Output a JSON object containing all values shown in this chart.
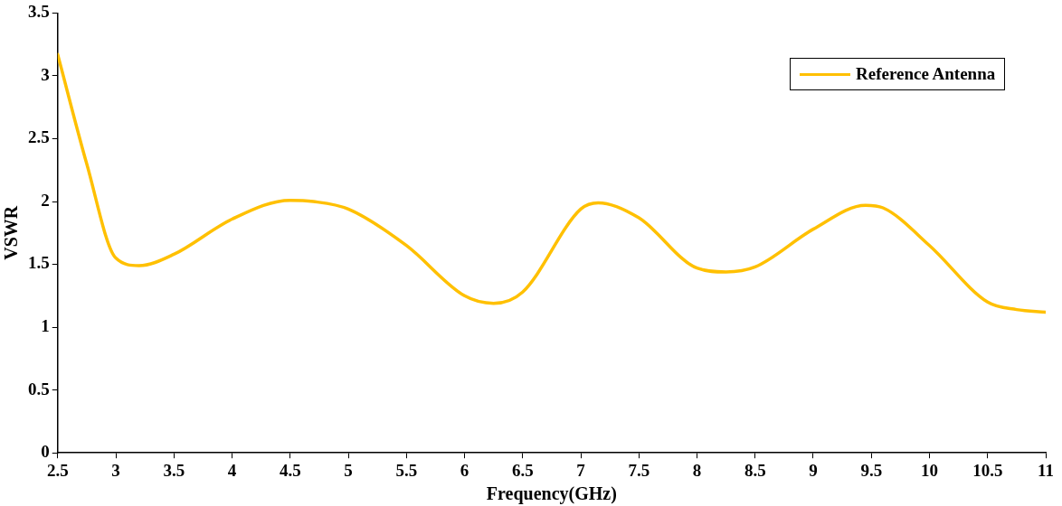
{
  "chart_data": {
    "type": "line",
    "xlabel": "Frequency(GHz)",
    "ylabel": "VSWR",
    "series": [
      {
        "name": "Reference Antenna",
        "color": "#ffc000",
        "x": [
          2.5,
          2.75,
          3.0,
          3.2,
          3.5,
          4.0,
          4.5,
          4.7,
          5.0,
          5.5,
          6.0,
          6.25,
          6.5,
          7.0,
          7.15,
          7.5,
          8.0,
          8.25,
          8.5,
          9.0,
          9.45,
          9.6,
          10.0,
          10.5,
          10.75,
          11.0
        ],
        "values": [
          3.17,
          2.3,
          1.55,
          1.49,
          1.58,
          1.86,
          2.01,
          2.0,
          1.94,
          1.65,
          1.25,
          1.19,
          1.28,
          1.94,
          1.99,
          1.87,
          1.47,
          1.44,
          1.48,
          1.78,
          1.97,
          1.95,
          1.65,
          1.2,
          1.14,
          1.12
        ]
      }
    ],
    "xlim": [
      2.5,
      11
    ],
    "xticks": [
      2.5,
      3,
      3.5,
      4,
      4.5,
      5,
      5.5,
      6,
      6.5,
      7,
      7.5,
      8,
      8.5,
      9,
      9.5,
      10,
      10.5,
      11
    ],
    "ylim": [
      0,
      3.5
    ],
    "yticks": [
      0,
      0.5,
      1,
      1.5,
      2,
      2.5,
      3,
      3.5
    ],
    "grid": false,
    "legend": "top right",
    "marker": "none",
    "line_style": "solid"
  }
}
